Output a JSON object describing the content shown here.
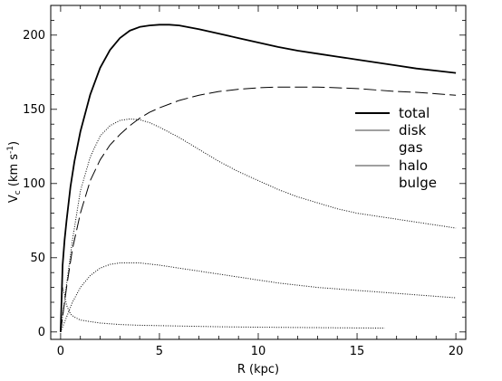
{
  "chart_data": {
    "type": "line",
    "xlabel": "R (kpc)",
    "ylabel": {
      "main": "V",
      "sub": "c",
      "unit_pre": " (km s",
      "unit_sup": "-1",
      "unit_post": ")"
    },
    "xlim": [
      -0.5,
      20.5
    ],
    "ylim": [
      -5,
      220
    ],
    "xticks": [
      0,
      5,
      10,
      15,
      20
    ],
    "yticks": [
      0,
      50,
      100,
      150,
      200
    ],
    "grid": false,
    "legend": {
      "position": "right-middle",
      "entries": [
        "total",
        "disk",
        "gas",
        "halo",
        "bulge"
      ]
    },
    "series": [
      {
        "name": "total",
        "style": "solid-thick",
        "x": [
          0,
          0.1,
          0.2,
          0.3,
          0.5,
          0.7,
          1.0,
          1.5,
          2.0,
          2.5,
          3.0,
          3.5,
          4.0,
          4.5,
          5.0,
          5.5,
          6.0,
          7.0,
          8.0,
          9.0,
          10.0,
          11.0,
          12.0,
          13.0,
          14.0,
          15.0,
          16.0,
          17.0,
          18.0,
          19.0,
          20.0
        ],
        "y": [
          0,
          45,
          62,
          75,
          98,
          115,
          135,
          160,
          178,
          190,
          198,
          203,
          205.5,
          206.5,
          207,
          207,
          206.5,
          204,
          201,
          198,
          195,
          192,
          189.5,
          187.5,
          185.5,
          183.5,
          181.5,
          179.5,
          177.5,
          176,
          174.5
        ]
      },
      {
        "name": "disk",
        "style": "dotted",
        "x": [
          0,
          0.3,
          0.6,
          1.0,
          1.5,
          2.0,
          2.5,
          3.0,
          3.5,
          4.0,
          4.5,
          5.0,
          6.0,
          7.0,
          8.0,
          9.0,
          10.0,
          11.0,
          12.0,
          13.0,
          14.0,
          15.0,
          16.0,
          17.0,
          18.0,
          19.0,
          20.0
        ],
        "y": [
          0,
          32,
          62,
          95,
          118,
          132,
          139,
          142.5,
          143.5,
          143,
          141,
          138,
          131,
          123,
          115,
          108,
          102,
          96,
          91,
          87,
          83,
          80,
          78,
          76,
          74,
          72,
          70
        ]
      },
      {
        "name": "gas",
        "style": "dotted",
        "x": [
          0,
          0.3,
          0.6,
          1.0,
          1.5,
          2.0,
          2.5,
          3.0,
          4.0,
          5.0,
          6.0,
          7.0,
          8.0,
          9.0,
          10.0,
          11.0,
          12.0,
          13.0,
          14.0,
          15.0,
          16.0,
          17.0,
          18.0,
          19.0,
          20.0
        ],
        "y": [
          0,
          10,
          20,
          30,
          38,
          43,
          45.5,
          46.5,
          46.5,
          45,
          43,
          41,
          39,
          37,
          35,
          33,
          31.5,
          30,
          29,
          28,
          27,
          26,
          25,
          24,
          23
        ]
      },
      {
        "name": "halo",
        "style": "dashed",
        "x": [
          0,
          0.3,
          0.6,
          1.0,
          1.5,
          2.0,
          2.5,
          3.0,
          3.5,
          4.0,
          4.5,
          5.0,
          6.0,
          7.0,
          8.0,
          9.0,
          10.0,
          11.0,
          12.0,
          13.0,
          14.0,
          15.0,
          16.0,
          17.0,
          18.0,
          19.0,
          20.0
        ],
        "y": [
          0,
          30,
          56,
          80,
          102,
          116,
          126,
          133,
          139,
          144,
          148,
          151,
          156,
          159.5,
          162,
          163.5,
          164.5,
          165,
          165,
          165,
          164.5,
          164,
          163,
          162,
          161.5,
          160.5,
          159.5
        ]
      },
      {
        "name": "bulge",
        "style": "dotted",
        "x": [
          0,
          0.05,
          0.1,
          0.2,
          0.3,
          0.5,
          0.7,
          1.0,
          1.5,
          2.0,
          3.0,
          4.0,
          6.0,
          8.0,
          10.0,
          12.0,
          14.0,
          16.4
        ],
        "y": [
          0,
          20,
          30,
          25,
          18,
          12,
          10,
          8,
          7,
          6,
          5,
          4.5,
          4,
          3.5,
          3.2,
          3,
          2.8,
          2.6
        ]
      }
    ]
  }
}
